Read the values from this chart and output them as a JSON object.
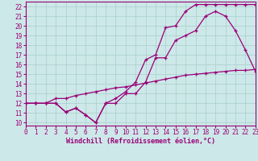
{
  "xlabel": "Windchill (Refroidissement éolien,°C)",
  "x_ticks": [
    0,
    1,
    2,
    3,
    4,
    5,
    6,
    7,
    8,
    9,
    10,
    11,
    12,
    13,
    14,
    15,
    16,
    17,
    18,
    19,
    20,
    21,
    22,
    23
  ],
  "y_ticks": [
    10,
    11,
    12,
    13,
    14,
    15,
    16,
    17,
    18,
    19,
    20,
    21,
    22
  ],
  "xlim": [
    0,
    23
  ],
  "ylim": [
    9.7,
    22.5
  ],
  "bg_color": "#cde8e8",
  "line_color": "#990077",
  "line1_x": [
    0,
    1,
    2,
    3,
    4,
    5,
    6,
    7,
    8,
    9,
    10,
    11,
    12,
    13,
    14,
    15,
    16,
    17,
    18,
    19,
    20,
    21,
    22,
    23
  ],
  "line1_y": [
    12,
    12,
    12,
    12,
    11.1,
    11.5,
    10.8,
    10.0,
    12,
    12.5,
    13.2,
    14.2,
    16.5,
    17,
    19.8,
    20.0,
    21.5,
    22.2,
    22.2,
    22.2,
    22.2,
    22.2,
    22.2,
    22.2
  ],
  "line2_x": [
    0,
    1,
    2,
    3,
    4,
    5,
    6,
    7,
    8,
    9,
    10,
    11,
    12,
    13,
    14,
    15,
    16,
    17,
    18,
    19,
    20,
    21,
    22,
    23
  ],
  "line2_y": [
    12,
    12,
    12,
    12,
    11.1,
    11.5,
    10.8,
    10.0,
    12,
    12.0,
    13.0,
    13.0,
    14.2,
    16.7,
    16.7,
    18.5,
    19.0,
    19.5,
    21.0,
    21.5,
    21.0,
    19.5,
    17.5,
    15.3
  ],
  "line3_x": [
    0,
    1,
    2,
    3,
    4,
    5,
    6,
    7,
    8,
    9,
    10,
    11,
    12,
    13,
    14,
    15,
    16,
    17,
    18,
    19,
    20,
    21,
    22,
    23
  ],
  "line3_y": [
    12,
    12,
    12,
    12.5,
    12.5,
    12.8,
    13.0,
    13.2,
    13.4,
    13.6,
    13.7,
    13.9,
    14.1,
    14.3,
    14.5,
    14.7,
    14.9,
    15.0,
    15.1,
    15.2,
    15.3,
    15.4,
    15.4,
    15.5
  ],
  "grid_color": "#a8cece",
  "tick_fontsize": 5.5,
  "xlabel_fontsize": 6.0
}
